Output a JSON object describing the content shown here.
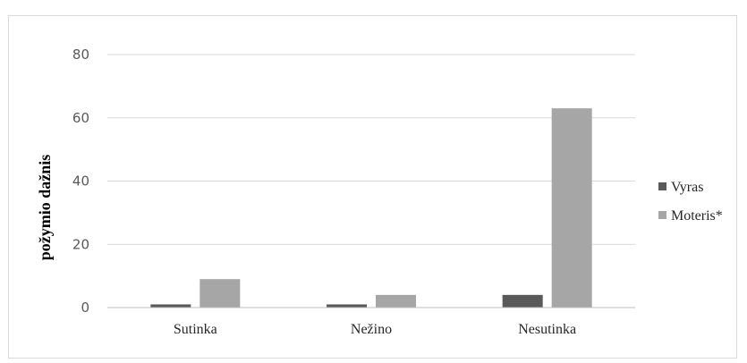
{
  "chart_data": {
    "type": "bar",
    "categories": [
      "Sutinka",
      "Nežino",
      "Nesutinka"
    ],
    "series": [
      {
        "name": "Vyras",
        "values": [
          1,
          1,
          4
        ],
        "color": "#595959"
      },
      {
        "name": "Moteris*",
        "values": [
          9,
          4,
          63
        ],
        "color": "#a6a6a6"
      }
    ],
    "ylabel": "požymio dažnis",
    "ylim": [
      0,
      80
    ],
    "yticks": [
      0,
      20,
      40,
      60,
      80
    ],
    "grid": true,
    "legend_position": "right"
  }
}
